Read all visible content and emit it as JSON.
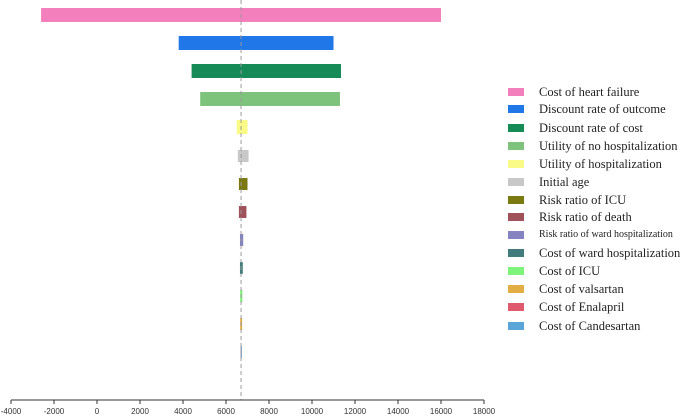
{
  "chart_data": {
    "type": "tornado",
    "base_value": 6700,
    "xlim": [
      -4000,
      18000
    ],
    "x_ticks": [
      -4000,
      -2000,
      0,
      2000,
      4000,
      6000,
      8000,
      10000,
      12000,
      14000,
      16000,
      18000
    ],
    "xlabel": "",
    "ylabel": "",
    "grid": false,
    "legend_position": "right",
    "series": [
      {
        "name": "Cost of heart failure",
        "low": -2600,
        "high": 16000,
        "color": "#f47fbd"
      },
      {
        "name": "Discount rate of outcome",
        "low": 3800,
        "high": 11000,
        "color": "#1f77e8"
      },
      {
        "name": "Discount rate of cost",
        "low": 4400,
        "high": 11350,
        "color": "#168a57"
      },
      {
        "name": "Utility of no hospitalization",
        "low": 4800,
        "high": 11300,
        "color": "#7dc37b"
      },
      {
        "name": "Utility of hospitalization",
        "low": 6500,
        "high": 7000,
        "color": "#fafa86"
      },
      {
        "name": "Initial age",
        "low": 6550,
        "high": 7050,
        "color": "#c8c8c8"
      },
      {
        "name": "Risk ratio of ICU",
        "low": 6600,
        "high": 7000,
        "color": "#7b7a12"
      },
      {
        "name": "Risk ratio of death",
        "low": 6600,
        "high": 6950,
        "color": "#a0525a"
      },
      {
        "name": "Risk ratio of ward hospitalization",
        "low": 6650,
        "high": 6800,
        "color": "#8583c0"
      },
      {
        "name": "Cost of ward hospitalization",
        "low": 6650,
        "high": 6780,
        "color": "#417b7b"
      },
      {
        "name": "Cost of ICU",
        "low": 6660,
        "high": 6760,
        "color": "#7ef47c"
      },
      {
        "name": "Cost of valsartan",
        "low": 6660,
        "high": 6750,
        "color": "#e3ad46"
      },
      {
        "name": "Cost of Enalapril",
        "low": 6680,
        "high": 6720,
        "color": "#e05a6e"
      },
      {
        "name": "Cost of Candesartan",
        "low": 6690,
        "high": 6710,
        "color": "#5aa5d8"
      }
    ]
  }
}
